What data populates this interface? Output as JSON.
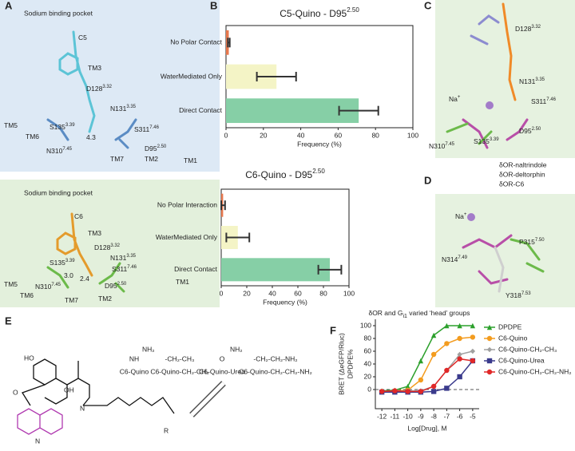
{
  "panel_labels": [
    "A",
    "B",
    "C",
    "D",
    "E",
    "F"
  ],
  "panel_a": [
    {
      "title": "Sodium binding pocket",
      "labels": [
        {
          "text": "C5"
        },
        {
          "text": "TM3"
        },
        {
          "text": "D128",
          "sup": "3.32"
        },
        {
          "text": "N131",
          "sup": "3.35"
        },
        {
          "text": "TM5"
        },
        {
          "text": "TM6"
        },
        {
          "text": "S135",
          "sup": "3.39"
        },
        {
          "text": "S311",
          "sup": "7.46"
        },
        {
          "text": "N310",
          "sup": "7.45"
        },
        {
          "text": "D95",
          "sup": "2.50"
        },
        {
          "text": "TM7"
        },
        {
          "text": "TM2"
        },
        {
          "text": "TM1"
        },
        {
          "text": "4.3"
        }
      ]
    },
    {
      "title": "Sodium binding pocket",
      "labels": [
        {
          "text": "C6"
        },
        {
          "text": "TM3"
        },
        {
          "text": "D128",
          "sup": "3.32"
        },
        {
          "text": "N131",
          "sup": "3.35"
        },
        {
          "text": "S135",
          "sup": "3.39"
        },
        {
          "text": "S311",
          "sup": "7.46"
        },
        {
          "text": "TM5"
        },
        {
          "text": "TM6"
        },
        {
          "text": "N310",
          "sup": "7.45"
        },
        {
          "text": "3.0"
        },
        {
          "text": "2.4"
        },
        {
          "text": "D95",
          "sup": "2.50"
        },
        {
          "text": "TM1"
        },
        {
          "text": "TM7"
        },
        {
          "text": "TM2"
        }
      ]
    }
  ],
  "panel_c": {
    "labels": [
      {
        "text": "D128",
        "sup": "3.32"
      },
      {
        "text": "N131",
        "sup": "3.35"
      },
      {
        "text": "Na",
        "sup": "+"
      },
      {
        "text": "S311",
        "sup": "7.46"
      },
      {
        "text": "N310",
        "sup": "7.45"
      },
      {
        "text": "S135",
        "sup": "3.39"
      },
      {
        "text": "D95",
        "sup": "2.50"
      }
    ],
    "legend": [
      "δOR-naltrindole",
      "δOR-deltorphin",
      "δOR-C6"
    ]
  },
  "panel_d": {
    "labels": [
      {
        "text": "Na",
        "sup": "+"
      },
      {
        "text": "P315",
        "sup": "7.50"
      },
      {
        "text": "N314",
        "sup": "7.49"
      },
      {
        "text": "Y318",
        "sup": "7.53"
      }
    ]
  },
  "panel_e": {
    "atoms": [
      "HO",
      "O",
      "OH",
      "N",
      "N",
      "R"
    ],
    "groups": [
      {
        "formula": "NH",
        "formula2": "NH₂",
        "name": "C6-Quino"
      },
      {
        "formula": "-CH₂-CH₃",
        "name": "C6-Quino-CH₂-CH₃"
      },
      {
        "formula": "O",
        "formula2": "NH₂",
        "name": "C6-Quino-Urea"
      },
      {
        "formula": "-CH₂-CH₂-NH₂",
        "name": "C6-Quino-CH₂-CH₂-NH₂"
      }
    ]
  },
  "chart_data": [
    {
      "type": "barh",
      "title": "C5-Quino - D95",
      "title_sup": "2.50",
      "categories": [
        "No Polar Contact",
        "WaterMediated Only",
        "Direct Contact"
      ],
      "values": [
        1.5,
        27,
        71
      ],
      "errors": [
        0.5,
        10.5,
        10.5
      ],
      "colors": [
        "#e8784d",
        "#f4f4c6",
        "#86cfa6"
      ],
      "xlim": [
        0,
        100
      ],
      "xticks": [
        0,
        20,
        40,
        60,
        80,
        100
      ],
      "xlabel": "Frequency (%)"
    },
    {
      "type": "barh",
      "title": "C6-Quino - D95",
      "title_sup": "2.50",
      "categories": [
        "No Polar Interaction",
        "WaterMediated Only",
        "Direct Contact"
      ],
      "values": [
        1.5,
        13,
        85
      ],
      "errors": [
        1.5,
        9,
        9
      ],
      "colors": [
        "#e8784d",
        "#f4f4c6",
        "#86cfa6"
      ],
      "xlim": [
        0,
        100
      ],
      "xticks": [
        0,
        20,
        40,
        60,
        80,
        100
      ],
      "xlabel": "Frequency (%)"
    },
    {
      "type": "line",
      "title": "δOR and G",
      "title_sub": "i1",
      "title_end": " varied ‘head’ groups",
      "x": [
        -12,
        -11,
        -10,
        -9,
        -8,
        -7,
        -6,
        -5
      ],
      "series": [
        {
          "name": "DPDPE",
          "color": "#2ca02c",
          "marker": "triangle",
          "values": [
            -2,
            -1,
            5,
            45,
            85,
            100,
            100,
            100
          ]
        },
        {
          "name": "C6-Quino",
          "color": "#f39c1f",
          "marker": "circle",
          "values": [
            -3,
            -2,
            -1,
            15,
            55,
            72,
            80,
            82
          ]
        },
        {
          "name": "C6-Quino-CH₂-CH₃",
          "color": "#a0a0a0",
          "marker": "diamond",
          "values": [
            -3,
            -3,
            -2,
            -2,
            5,
            30,
            55,
            60
          ]
        },
        {
          "name": "C6-Quino-Urea",
          "color": "#3a3a8c",
          "marker": "square",
          "values": [
            -4,
            -4,
            -4,
            -4,
            -3,
            2,
            20,
            45
          ]
        },
        {
          "name": "C6-Quino-CH₂-CH₂-NH₂",
          "color": "#e02828",
          "marker": "circle",
          "values": [
            -3,
            -2,
            -3,
            -3,
            5,
            30,
            48,
            45
          ]
        }
      ],
      "xlim": [
        -12.5,
        -4.5
      ],
      "xticks": [
        -12,
        -11,
        -10,
        -9,
        -8,
        -7,
        -6,
        -5
      ],
      "ylim": [
        -30,
        110
      ],
      "yticks": [
        0,
        20,
        40,
        60,
        80,
        100
      ],
      "hline": 0,
      "xlabel": "Log[Drug], M",
      "ylabel": "BRET (ΔeGFP/Rluc)",
      "ylabel2": "DPDPE%"
    }
  ]
}
